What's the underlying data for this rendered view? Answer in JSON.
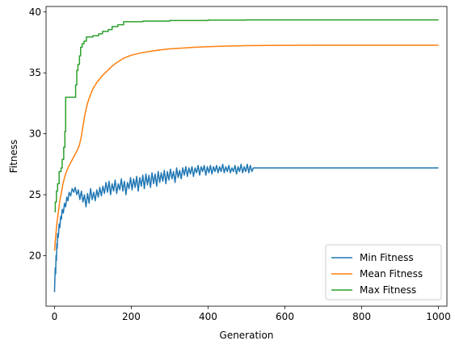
{
  "chart_data": {
    "type": "line",
    "title": "",
    "xlabel": "Generation",
    "ylabel": "Fitness",
    "xlim": [
      -22,
      1022
    ],
    "ylim": [
      15.85,
      40.45
    ],
    "xticks": [
      0,
      200,
      400,
      600,
      800,
      1000
    ],
    "yticks": [
      20,
      25,
      30,
      35,
      40
    ],
    "grid": false,
    "legend": "bottom-right",
    "series": [
      {
        "name": "Min Fitness",
        "color": "#1f77b4",
        "points": [
          [
            0,
            17.0
          ],
          [
            1,
            18.2
          ],
          [
            2,
            19.0
          ],
          [
            3,
            18.5
          ],
          [
            4,
            20.0
          ],
          [
            5,
            19.6
          ],
          [
            6,
            21.0
          ],
          [
            7,
            20.6
          ],
          [
            8,
            21.8
          ],
          [
            10,
            21.5
          ],
          [
            12,
            22.6
          ],
          [
            14,
            22.3
          ],
          [
            16,
            23.2
          ],
          [
            18,
            23.0
          ],
          [
            20,
            23.8
          ],
          [
            23,
            23.5
          ],
          [
            26,
            24.3
          ],
          [
            29,
            24.0
          ],
          [
            32,
            24.8
          ],
          [
            35,
            24.5
          ],
          [
            38,
            25.2
          ],
          [
            42,
            24.9
          ],
          [
            46,
            25.5
          ],
          [
            50,
            25.2
          ],
          [
            54,
            25.6
          ],
          [
            58,
            25.0
          ],
          [
            62,
            25.4
          ],
          [
            66,
            24.6
          ],
          [
            70,
            25.3
          ],
          [
            74,
            24.4
          ],
          [
            78,
            25.0
          ],
          [
            82,
            24.0
          ],
          [
            86,
            25.1
          ],
          [
            90,
            24.3
          ],
          [
            94,
            25.5
          ],
          [
            98,
            24.6
          ],
          [
            102,
            25.2
          ],
          [
            106,
            24.5
          ],
          [
            110,
            25.4
          ],
          [
            114,
            24.8
          ],
          [
            118,
            25.6
          ],
          [
            122,
            24.9
          ],
          [
            126,
            25.7
          ],
          [
            130,
            25.1
          ],
          [
            134,
            26.0
          ],
          [
            138,
            25.2
          ],
          [
            142,
            26.1
          ],
          [
            146,
            25.0
          ],
          [
            150,
            25.9
          ],
          [
            154,
            25.3
          ],
          [
            158,
            26.2
          ],
          [
            162,
            25.1
          ],
          [
            166,
            25.9
          ],
          [
            170,
            25.4
          ],
          [
            174,
            26.3
          ],
          [
            178,
            25.3
          ],
          [
            182,
            26.1
          ],
          [
            186,
            25.0
          ],
          [
            190,
            26.0
          ],
          [
            194,
            25.5
          ],
          [
            198,
            26.4
          ],
          [
            202,
            25.4
          ],
          [
            206,
            26.3
          ],
          [
            210,
            25.6
          ],
          [
            214,
            26.5
          ],
          [
            218,
            25.3
          ],
          [
            222,
            26.4
          ],
          [
            226,
            25.7
          ],
          [
            230,
            26.6
          ],
          [
            234,
            25.5
          ],
          [
            238,
            26.7
          ],
          [
            242,
            25.8
          ],
          [
            246,
            26.6
          ],
          [
            250,
            25.6
          ],
          [
            254,
            26.8
          ],
          [
            258,
            25.9
          ],
          [
            262,
            26.7
          ],
          [
            266,
            25.7
          ],
          [
            270,
            26.9
          ],
          [
            274,
            26.0
          ],
          [
            278,
            26.8
          ],
          [
            282,
            26.1
          ],
          [
            286,
            27.0
          ],
          [
            290,
            25.9
          ],
          [
            294,
            26.9
          ],
          [
            298,
            26.2
          ],
          [
            302,
            27.1
          ],
          [
            306,
            26.3
          ],
          [
            310,
            26.9
          ],
          [
            314,
            26.0
          ],
          [
            318,
            27.2
          ],
          [
            322,
            26.4
          ],
          [
            326,
            27.0
          ],
          [
            330,
            26.3
          ],
          [
            334,
            27.2
          ],
          [
            338,
            26.6
          ],
          [
            342,
            27.3
          ],
          [
            346,
            26.5
          ],
          [
            350,
            27.2
          ],
          [
            354,
            26.7
          ],
          [
            358,
            27.3
          ],
          [
            362,
            26.5
          ],
          [
            366,
            27.2
          ],
          [
            370,
            26.8
          ],
          [
            374,
            27.4
          ],
          [
            378,
            26.6
          ],
          [
            382,
            27.3
          ],
          [
            386,
            26.9
          ],
          [
            390,
            27.4
          ],
          [
            394,
            26.6
          ],
          [
            398,
            27.3
          ],
          [
            402,
            26.8
          ],
          [
            406,
            27.4
          ],
          [
            410,
            26.7
          ],
          [
            414,
            27.3
          ],
          [
            418,
            26.9
          ],
          [
            422,
            27.4
          ],
          [
            426,
            26.8
          ],
          [
            430,
            27.3
          ],
          [
            434,
            26.9
          ],
          [
            438,
            27.5
          ],
          [
            442,
            26.8
          ],
          [
            446,
            27.3
          ],
          [
            450,
            26.9
          ],
          [
            454,
            27.4
          ],
          [
            458,
            26.8
          ],
          [
            462,
            27.2
          ],
          [
            466,
            26.9
          ],
          [
            470,
            27.4
          ],
          [
            474,
            26.7
          ],
          [
            478,
            27.3
          ],
          [
            482,
            26.9
          ],
          [
            486,
            27.5
          ],
          [
            490,
            26.8
          ],
          [
            494,
            27.3
          ],
          [
            498,
            26.9
          ],
          [
            502,
            27.5
          ],
          [
            506,
            26.8
          ],
          [
            510,
            27.4
          ],
          [
            514,
            26.9
          ],
          [
            518,
            27.2
          ],
          [
            1000,
            27.2
          ]
        ]
      },
      {
        "name": "Mean Fitness",
        "color": "#ff7f0e",
        "points": [
          [
            0,
            20.4
          ],
          [
            3,
            21.6
          ],
          [
            6,
            22.6
          ],
          [
            10,
            23.6
          ],
          [
            14,
            24.5
          ],
          [
            18,
            25.2
          ],
          [
            22,
            25.9
          ],
          [
            26,
            26.4
          ],
          [
            30,
            26.8
          ],
          [
            35,
            27.2
          ],
          [
            40,
            27.5
          ],
          [
            45,
            27.8
          ],
          [
            50,
            28.1
          ],
          [
            55,
            28.4
          ],
          [
            60,
            28.7
          ],
          [
            65,
            29.1
          ],
          [
            70,
            29.8
          ],
          [
            75,
            30.8
          ],
          [
            80,
            31.7
          ],
          [
            85,
            32.4
          ],
          [
            90,
            32.9
          ],
          [
            95,
            33.3
          ],
          [
            100,
            33.7
          ],
          [
            110,
            34.2
          ],
          [
            120,
            34.6
          ],
          [
            130,
            34.95
          ],
          [
            140,
            35.25
          ],
          [
            150,
            35.55
          ],
          [
            160,
            35.8
          ],
          [
            170,
            36.0
          ],
          [
            180,
            36.2
          ],
          [
            200,
            36.45
          ],
          [
            220,
            36.6
          ],
          [
            240,
            36.72
          ],
          [
            260,
            36.82
          ],
          [
            280,
            36.9
          ],
          [
            300,
            36.97
          ],
          [
            330,
            37.03
          ],
          [
            360,
            37.09
          ],
          [
            400,
            37.15
          ],
          [
            450,
            37.2
          ],
          [
            500,
            37.23
          ],
          [
            550,
            37.25
          ],
          [
            600,
            37.26
          ],
          [
            700,
            37.27
          ],
          [
            800,
            37.27
          ],
          [
            1000,
            37.27
          ]
        ]
      },
      {
        "name": "Max Fitness",
        "color": "#2ca02c",
        "points": [
          [
            0,
            23.6
          ],
          [
            2,
            23.6
          ],
          [
            2,
            24.4
          ],
          [
            5,
            24.4
          ],
          [
            5,
            25.3
          ],
          [
            8,
            25.3
          ],
          [
            8,
            25.9
          ],
          [
            12,
            25.9
          ],
          [
            12,
            26.9
          ],
          [
            17,
            26.9
          ],
          [
            17,
            27.2
          ],
          [
            20,
            27.2
          ],
          [
            20,
            27.9
          ],
          [
            24,
            27.9
          ],
          [
            24,
            28.9
          ],
          [
            27,
            28.9
          ],
          [
            27,
            30.2
          ],
          [
            29,
            30.2
          ],
          [
            29,
            33.0
          ],
          [
            55,
            33.0
          ],
          [
            55,
            34.0
          ],
          [
            58,
            34.0
          ],
          [
            58,
            35.2
          ],
          [
            61,
            35.2
          ],
          [
            61,
            35.7
          ],
          [
            65,
            35.7
          ],
          [
            65,
            36.4
          ],
          [
            68,
            36.4
          ],
          [
            68,
            37.1
          ],
          [
            72,
            37.1
          ],
          [
            72,
            37.4
          ],
          [
            77,
            37.4
          ],
          [
            77,
            37.6
          ],
          [
            83,
            37.6
          ],
          [
            83,
            37.95
          ],
          [
            100,
            37.95
          ],
          [
            100,
            38.05
          ],
          [
            115,
            38.05
          ],
          [
            115,
            38.2
          ],
          [
            125,
            38.2
          ],
          [
            125,
            38.4
          ],
          [
            140,
            38.4
          ],
          [
            140,
            38.55
          ],
          [
            150,
            38.55
          ],
          [
            150,
            38.8
          ],
          [
            165,
            38.8
          ],
          [
            165,
            38.95
          ],
          [
            180,
            38.95
          ],
          [
            180,
            39.2
          ],
          [
            230,
            39.2
          ],
          [
            230,
            39.25
          ],
          [
            300,
            39.25
          ],
          [
            300,
            39.3
          ],
          [
            400,
            39.3
          ],
          [
            400,
            39.33
          ],
          [
            500,
            39.33
          ],
          [
            500,
            39.35
          ],
          [
            1000,
            39.35
          ]
        ]
      }
    ]
  }
}
